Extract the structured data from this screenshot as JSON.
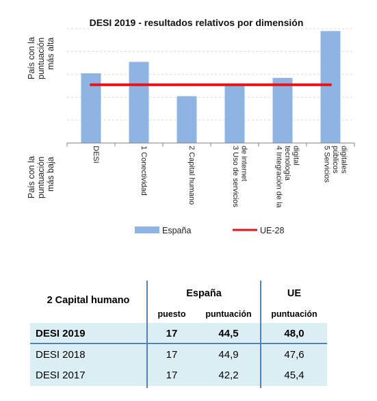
{
  "chart_data": {
    "type": "bar",
    "title": "DESI 2019 - resultados relativos por dimensión",
    "y_top_label": [
      "País con la",
      "puntuación",
      "más alta"
    ],
    "y_bottom_label": [
      "País con la",
      "puntuación",
      "más baja"
    ],
    "categories": [
      [
        "DESI"
      ],
      [
        "1 Conectividad"
      ],
      [
        "2 Capital humano"
      ],
      [
        "3 Uso de servicios",
        "de internet"
      ],
      [
        "4 Integración de la",
        "tecnología",
        "digital"
      ],
      [
        "5 Servicios",
        "públicos",
        "digitales"
      ]
    ],
    "ylim": [
      0,
      1
    ],
    "gridlines": [
      0.2,
      0.4,
      0.6,
      0.8,
      1.0
    ],
    "series": [
      {
        "name": "España",
        "type": "bar",
        "color": "#8db4e2",
        "values": [
          0.61,
          0.71,
          0.41,
          0.51,
          0.57,
          0.98
        ]
      },
      {
        "name": "UE-28",
        "type": "line",
        "color": "#e8141b",
        "values": [
          0.51,
          0.51,
          0.51,
          0.51,
          0.51,
          0.51
        ]
      }
    ]
  },
  "table": {
    "title": "2 Capital humano",
    "group_spain": "España",
    "group_ue": "UE",
    "col_puesto": "puesto",
    "col_puntuacion_es": "puntuación",
    "col_puntuacion_ue": "puntuación",
    "rows": [
      {
        "label": "DESI 2019",
        "puesto": "17",
        "puntuacion": "44,5",
        "ue": "48,0"
      },
      {
        "label": "DESI 2018",
        "puesto": "17",
        "puntuacion": "44,9",
        "ue": "47,6"
      },
      {
        "label": "DESI 2017",
        "puesto": "17",
        "puntuacion": "42,2",
        "ue": "45,4"
      }
    ]
  }
}
